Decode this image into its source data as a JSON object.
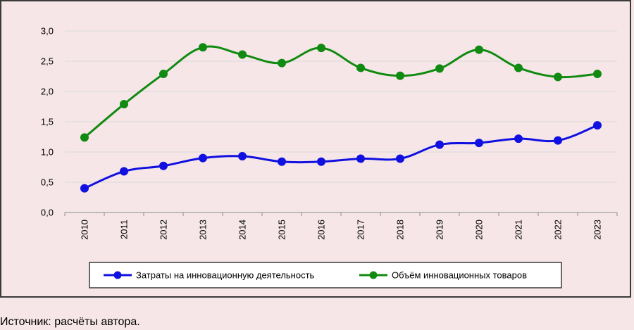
{
  "chart_data": {
    "type": "line",
    "title": "",
    "xlabel": "",
    "ylabel": "",
    "categories": [
      "2010",
      "2011",
      "2012",
      "2013",
      "2014",
      "2015",
      "2016",
      "2017",
      "2018",
      "2019",
      "2020",
      "2021",
      "2022",
      "2023"
    ],
    "ylim": [
      0,
      3
    ],
    "yticks": [
      "0,0",
      "0,5",
      "1,0",
      "1,5",
      "2,0",
      "2,5",
      "3,0"
    ],
    "grid": true,
    "legend_position": "bottom",
    "series": [
      {
        "name": "Затраты на инновационную деятельность",
        "color": "#1010e0",
        "values": [
          0.4,
          0.68,
          0.77,
          0.9,
          0.93,
          0.84,
          0.84,
          0.89,
          0.89,
          1.12,
          1.15,
          1.22,
          1.19,
          1.44
        ]
      },
      {
        "name": "Объём инновационных товаров",
        "color": "#108a10",
        "values": [
          1.24,
          1.79,
          2.29,
          2.73,
          2.61,
          2.47,
          2.72,
          2.39,
          2.26,
          2.38,
          2.69,
          2.39,
          2.24,
          2.29
        ]
      }
    ]
  },
  "source_note": "Источник: расчёты автора."
}
